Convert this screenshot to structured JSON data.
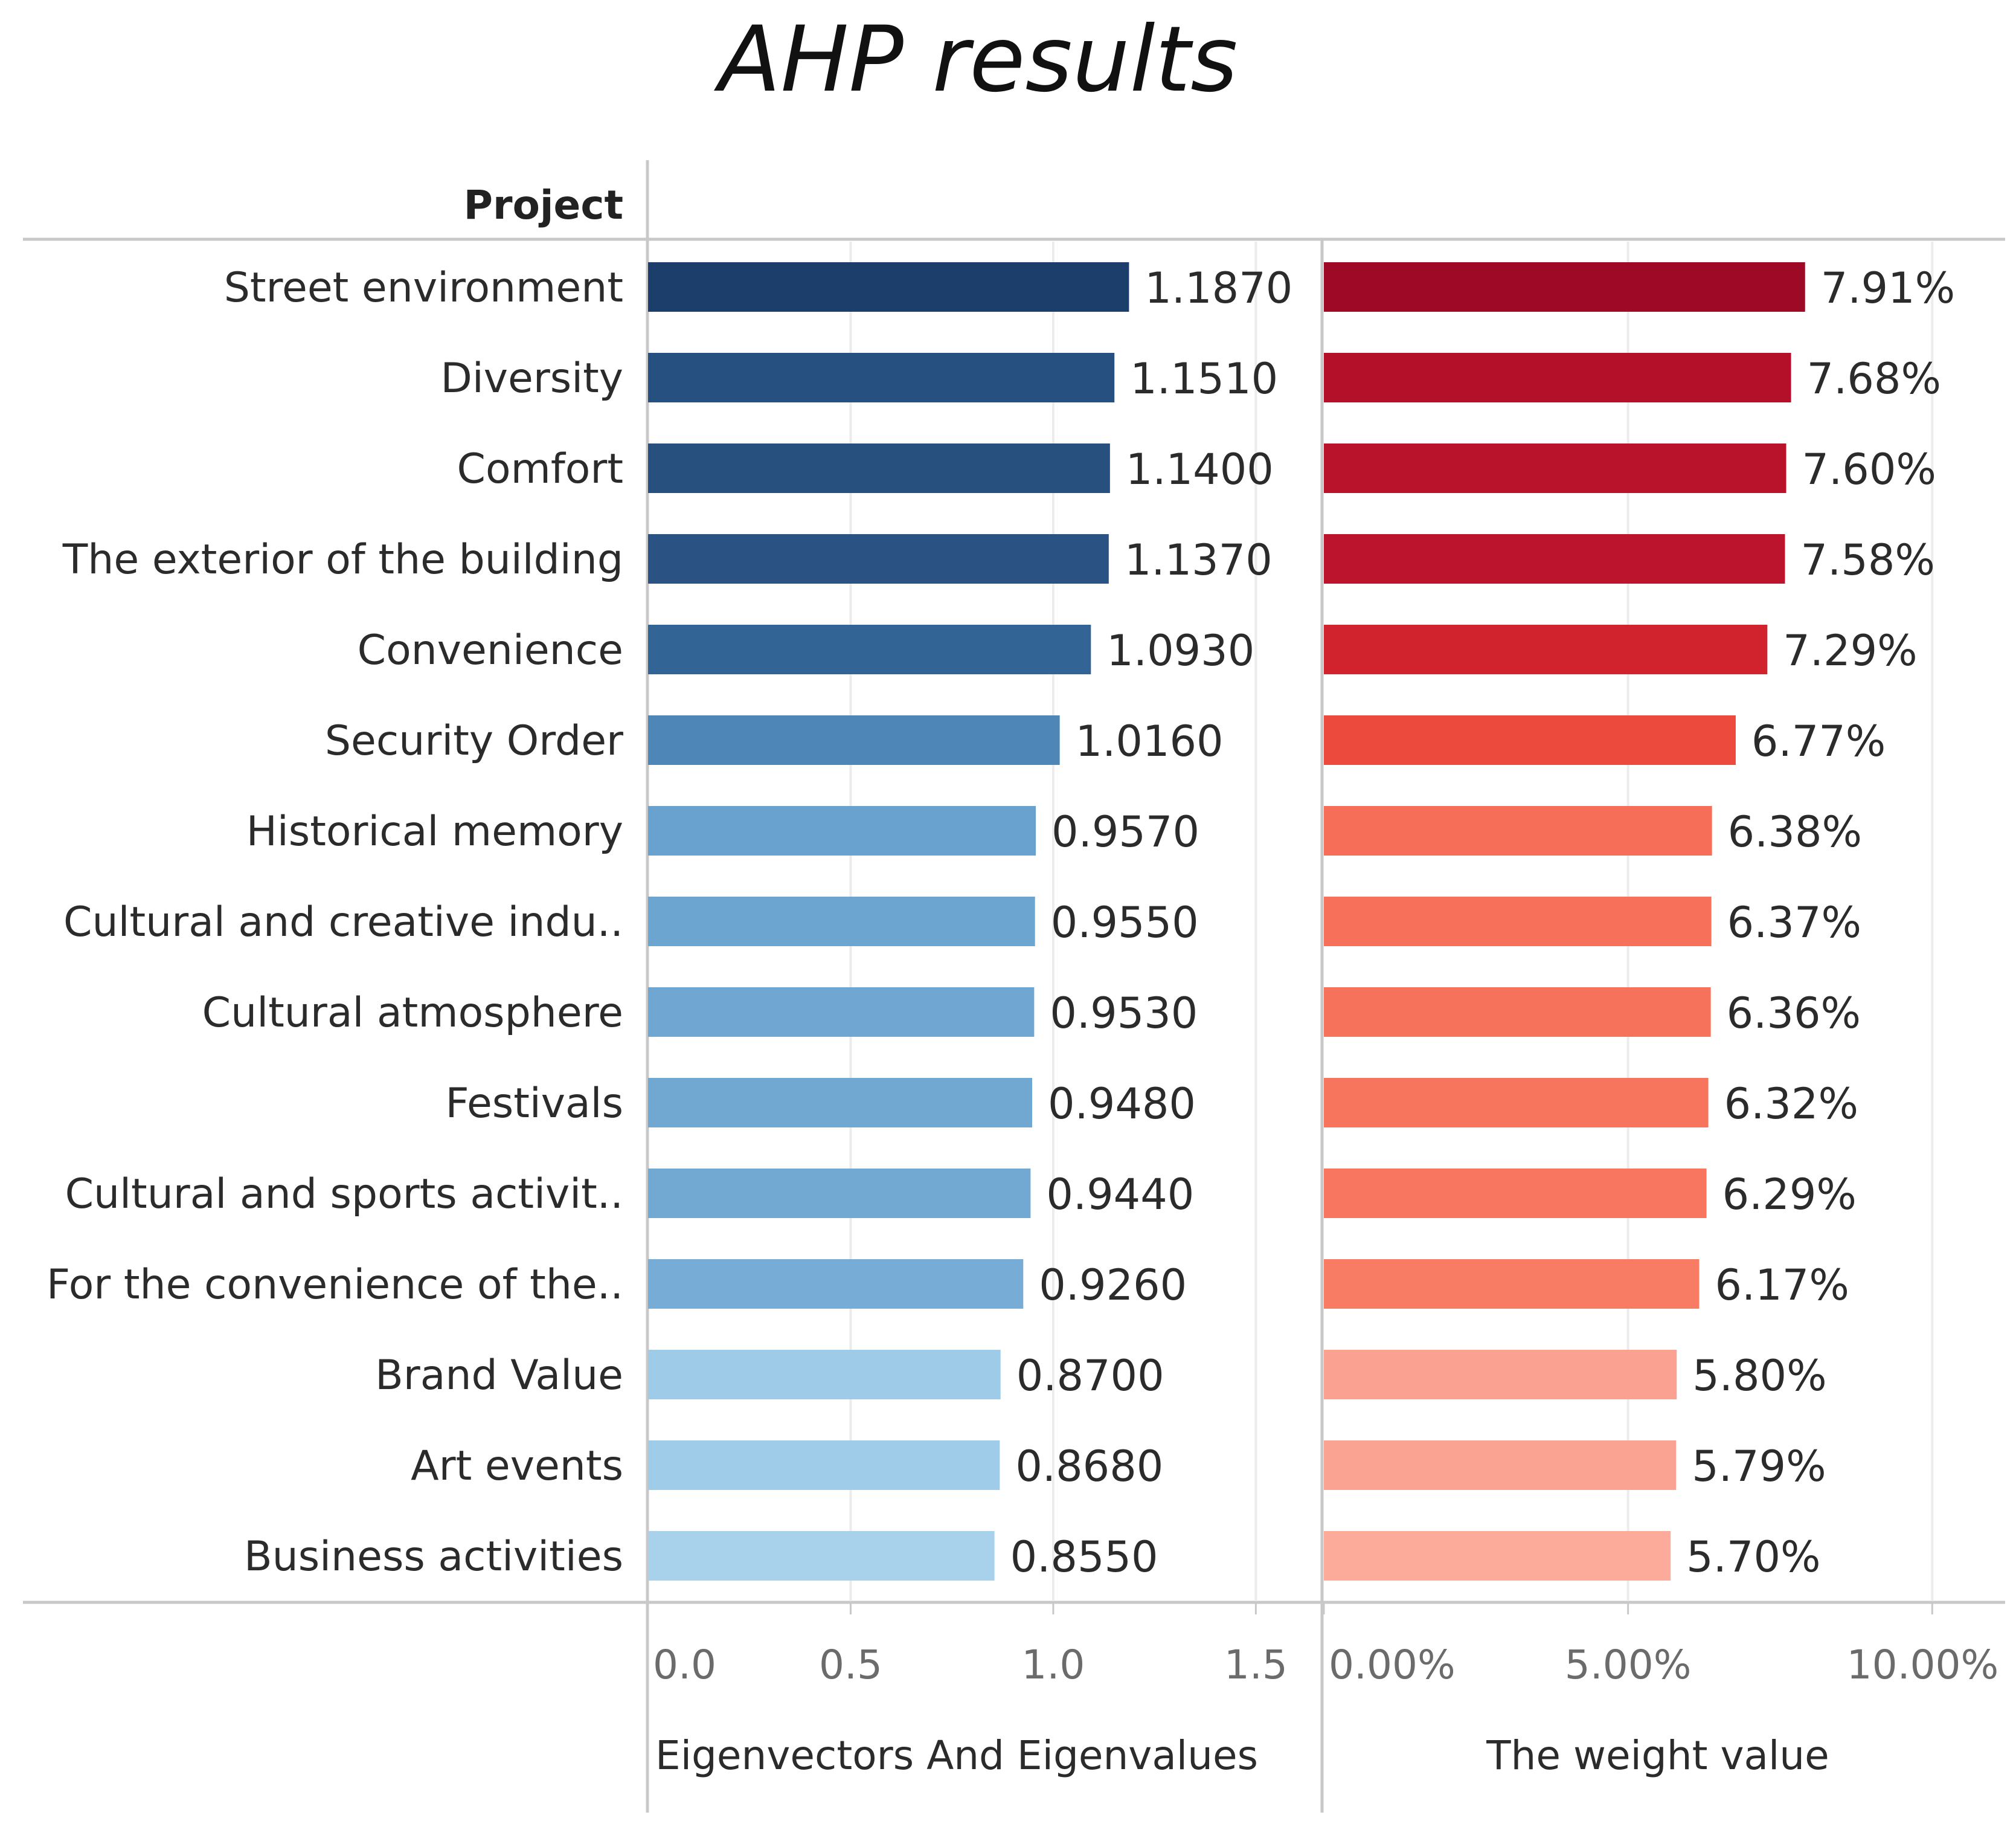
{
  "chart_data": {
    "type": "bar",
    "title": "AHP results",
    "row_header": "Project",
    "categories": [
      "Street environment",
      "Diversity",
      "Comfort",
      "The exterior of the building",
      "Convenience",
      "Security Order",
      "Historical memory",
      "Cultural and creative indu..",
      "Cultural atmosphere",
      "Festivals",
      "Cultural and sports activit..",
      "For the convenience of the..",
      "Brand Value",
      "Art events",
      "Business activities"
    ],
    "series": [
      {
        "name": "Eigenvectors And Eigenvalues",
        "values": [
          1.187,
          1.151,
          1.14,
          1.137,
          1.093,
          1.016,
          0.957,
          0.955,
          0.953,
          0.948,
          0.944,
          0.926,
          0.87,
          0.868,
          0.855
        ],
        "labels": [
          "1.1870",
          "1.1510",
          "1.1400",
          "1.1370",
          "1.0930",
          "1.0160",
          "0.9570",
          "0.9550",
          "0.9530",
          "0.9480",
          "0.9440",
          "0.9260",
          "0.8700",
          "0.8680",
          "0.8550"
        ],
        "xlim": [
          0,
          1.65
        ],
        "ticks": [
          0.0,
          0.5,
          1.0,
          1.5
        ],
        "tick_labels": [
          "0.0",
          "0.5",
          "1.0",
          "1.5"
        ],
        "colors": [
          "#1b3e6a",
          "#25507f",
          "#28507e",
          "#2a5282",
          "#326495",
          "#4f86b8",
          "#69a2cf",
          "#6da5d1",
          "#6fa7d2",
          "#71a8d2",
          "#72a9d3",
          "#76acd5",
          "#9ecbe8",
          "#9fcce9",
          "#a8d2ec"
        ]
      },
      {
        "name": "The weight value",
        "values": [
          7.91,
          7.68,
          7.6,
          7.58,
          7.29,
          6.77,
          6.38,
          6.37,
          6.36,
          6.32,
          6.29,
          6.17,
          5.8,
          5.79,
          5.7
        ],
        "labels": [
          "7.91%",
          "7.68%",
          "7.60%",
          "7.58%",
          "7.29%",
          "6.77%",
          "6.38%",
          "6.37%",
          "6.36%",
          "6.32%",
          "6.29%",
          "6.17%",
          "5.80%",
          "5.79%",
          "5.70%"
        ],
        "xlim": [
          0,
          11
        ],
        "ticks": [
          0,
          5,
          10
        ],
        "tick_labels": [
          "0.00%",
          "5.00%",
          "10.00%"
        ],
        "colors": [
          "#9e0a26",
          "#b5102a",
          "#b9122b",
          "#bb142c",
          "#d0232d",
          "#ec4a3c",
          "#f66e57",
          "#f7705a",
          "#f7725b",
          "#f7745d",
          "#f8765f",
          "#f87c64",
          "#fba191",
          "#fba393",
          "#fcaa9a"
        ]
      }
    ],
    "grid": true
  }
}
